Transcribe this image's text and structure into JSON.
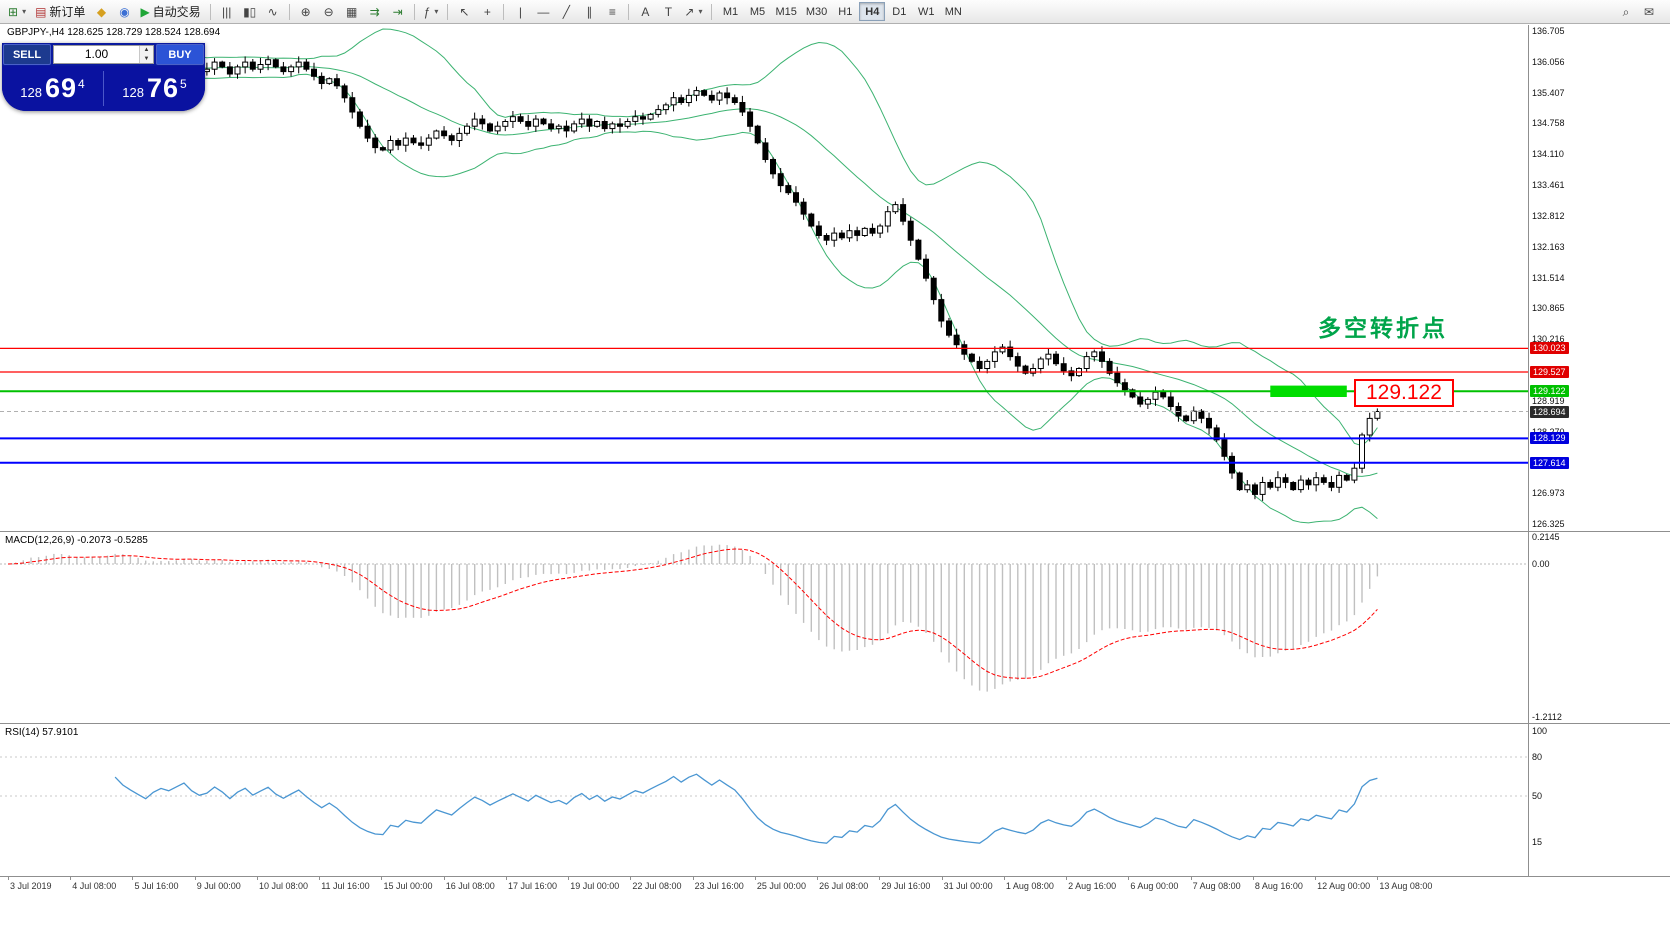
{
  "toolbar": {
    "caret_glyph": "▾",
    "left_items": [
      {
        "name": "new-chart-button",
        "glyph": "⊞",
        "color": "#2e7d32",
        "caret": true
      },
      {
        "name": "new-order-button",
        "glyph": "▤",
        "color": "#b03030",
        "label": "新订单"
      },
      {
        "name": "alerts-icon-button",
        "glyph": "◆",
        "color": "#d6a020"
      },
      {
        "name": "community-icon-button",
        "glyph": "◉",
        "color": "#3b6fd4"
      },
      {
        "name": "auto-trading-button",
        "glyph": "▶",
        "color": "#1fa637",
        "label": "自动交易"
      },
      {
        "sep": true
      },
      {
        "name": "bar-chart-button",
        "glyph": "|||",
        "color": "#444"
      },
      {
        "name": "candlestick-chart-button",
        "glyph": "▮▯",
        "color": "#444"
      },
      {
        "name": "line-chart-button",
        "glyph": "∿",
        "color": "#444"
      },
      {
        "sep": true
      },
      {
        "name": "zoom-in-button",
        "glyph": "⊕",
        "color": "#444"
      },
      {
        "name": "zoom-out-button",
        "glyph": "⊖",
        "color": "#444"
      },
      {
        "name": "tile-windows-button",
        "glyph": "▦",
        "color": "#444"
      },
      {
        "name": "auto-scroll-button",
        "glyph": "⇉",
        "color": "#2e7d32"
      },
      {
        "name": "chart-shift-button",
        "glyph": "⇥",
        "color": "#2e7d32"
      },
      {
        "sep": true
      },
      {
        "name": "indicators-button",
        "glyph": "ƒ",
        "color": "#444",
        "caret": true
      },
      {
        "sep": true
      },
      {
        "name": "cursor-button",
        "glyph": "↖",
        "color": "#444"
      },
      {
        "name": "crosshair-button",
        "glyph": "+",
        "color": "#444"
      },
      {
        "sep": true
      },
      {
        "name": "vertical-line-button",
        "glyph": "|",
        "color": "#444"
      },
      {
        "name": "horizontal-line-button",
        "glyph": "—",
        "color": "#444"
      },
      {
        "name": "trendline-button",
        "glyph": "╱",
        "color": "#444"
      },
      {
        "name": "channel-button",
        "glyph": "∥",
        "color": "#444"
      },
      {
        "name": "fibonacci-button",
        "glyph": "≡",
        "color": "#444"
      },
      {
        "sep": true
      },
      {
        "name": "text-button",
        "glyph": "A",
        "color": "#444"
      },
      {
        "name": "text-label-button",
        "glyph": "T",
        "color": "#444"
      },
      {
        "name": "arrows-tool-button",
        "glyph": "↗",
        "color": "#444",
        "caret": true
      },
      {
        "sep": true
      }
    ],
    "timeframes": [
      "M1",
      "M5",
      "M15",
      "M30",
      "H1",
      "H4",
      "D1",
      "W1",
      "MN"
    ],
    "active_timeframe": "H4",
    "right_items": [
      {
        "name": "symbol-search-button",
        "glyph": "⌕",
        "color": "#444"
      },
      {
        "name": "chat-button",
        "glyph": "✉",
        "color": "#444"
      }
    ]
  },
  "chart_header": {
    "title": "GBPJPY-,H4  128.625 128.729 128.524 128.694"
  },
  "order_panel": {
    "sell_label": "SELL",
    "buy_label": "BUY",
    "volume": "1.00",
    "up_glyph": "▲",
    "down_glyph": "▼",
    "sell_price": {
      "main": "128",
      "pips": "69",
      "pt": "4"
    },
    "buy_price": {
      "main": "128",
      "pips": "76",
      "pt": "5"
    }
  },
  "annotations": {
    "turning_point": "多空转折点",
    "level_label": "129.122"
  },
  "price_scale": {
    "ticks": [
      "136.705",
      "136.056",
      "135.407",
      "134.758",
      "134.110",
      "133.461",
      "132.812",
      "132.163",
      "131.514",
      "130.865",
      "130.216",
      "128.919",
      "128.270",
      "126.973",
      "126.325"
    ],
    "badges": [
      {
        "label": "130.023",
        "price": 130.023,
        "color": "#e00000"
      },
      {
        "label": "129.527",
        "price": 129.527,
        "color": "#e00000"
      },
      {
        "label": "129.122",
        "price": 129.122,
        "color": "#00c000"
      },
      {
        "label": "128.694",
        "price": 128.694,
        "color": "#2b2b2b"
      },
      {
        "label": "128.129",
        "price": 128.129,
        "color": "#0000dd"
      },
      {
        "label": "127.614",
        "price": 127.614,
        "color": "#0000dd"
      }
    ]
  },
  "macd_panel": {
    "label": "MACD(12,26,9) -0.2073 -0.5285",
    "scale": [
      {
        "label": "0.2145",
        "value": 0.2145
      },
      {
        "label": "0.00",
        "value": 0
      },
      {
        "label": "-1.2112",
        "value": -1.2112
      }
    ]
  },
  "rsi_panel": {
    "label": "RSI(14) 57.9101",
    "scale": [
      {
        "label": "100",
        "value": 100
      },
      {
        "label": "80",
        "value": 80
      },
      {
        "label": "50",
        "value": 50
      },
      {
        "label": "15",
        "value": 15
      }
    ],
    "levels": [
      80,
      50
    ]
  },
  "chart_data": {
    "type": "candlestick",
    "symbol": "GBPJPY-",
    "timeframe": "H4",
    "current_ohlc": {
      "open": 128.625,
      "high": 128.729,
      "low": 128.524,
      "close": 128.694
    },
    "ylim": [
      126.325,
      136.705
    ],
    "closes": [
      135.7,
      135.85,
      135.95,
      136.05,
      135.9,
      136.0,
      136.1,
      135.95,
      135.85,
      135.75,
      135.9,
      136.0,
      135.95,
      136.05,
      136.15,
      136.0,
      135.9,
      135.8,
      135.7,
      135.85,
      135.95,
      135.9,
      136.0,
      136.1,
      135.95,
      135.85,
      135.9,
      136.05,
      135.95,
      135.8,
      135.95,
      136.05,
      135.9,
      136.0,
      136.1,
      135.95,
      135.85,
      135.95,
      136.05,
      135.9,
      135.75,
      135.6,
      135.7,
      135.55,
      135.3,
      135.0,
      134.7,
      134.45,
      134.25,
      134.2,
      134.4,
      134.3,
      134.45,
      134.35,
      134.3,
      134.45,
      134.6,
      134.5,
      134.4,
      134.55,
      134.7,
      134.85,
      134.75,
      134.6,
      134.7,
      134.8,
      134.9,
      134.8,
      134.7,
      134.85,
      134.75,
      134.65,
      134.7,
      134.6,
      134.75,
      134.85,
      134.7,
      134.8,
      134.65,
      134.75,
      134.7,
      134.8,
      134.9,
      134.85,
      134.95,
      135.05,
      135.15,
      135.3,
      135.2,
      135.35,
      135.45,
      135.35,
      135.25,
      135.4,
      135.3,
      135.2,
      135.0,
      134.7,
      134.35,
      134.0,
      133.7,
      133.45,
      133.3,
      133.1,
      132.85,
      132.6,
      132.4,
      132.3,
      132.45,
      132.35,
      132.5,
      132.4,
      132.55,
      132.45,
      132.6,
      132.9,
      133.05,
      132.7,
      132.3,
      131.9,
      131.5,
      131.05,
      130.6,
      130.3,
      130.1,
      129.9,
      129.75,
      129.6,
      129.75,
      129.95,
      130.05,
      129.85,
      129.65,
      129.5,
      129.6,
      129.8,
      129.9,
      129.7,
      129.55,
      129.45,
      129.6,
      129.85,
      129.95,
      129.75,
      129.5,
      129.3,
      129.15,
      129.0,
      128.85,
      128.95,
      129.1,
      129.0,
      128.8,
      128.6,
      128.5,
      128.7,
      128.55,
      128.35,
      128.1,
      127.75,
      127.4,
      127.05,
      127.15,
      126.95,
      127.2,
      127.1,
      127.3,
      127.2,
      127.05,
      127.25,
      127.15,
      127.3,
      127.2,
      127.1,
      127.35,
      127.25,
      127.5,
      128.2,
      128.55,
      128.694
    ],
    "indicators": {
      "bollinger": {
        "period": 20,
        "deviation": 2
      },
      "macd": {
        "fast": 12,
        "slow": 26,
        "signal": 9,
        "current_main": -0.2073,
        "current_signal": -0.5285
      },
      "rsi": {
        "period": 14,
        "current": 57.9101
      }
    },
    "levels": [
      {
        "price": 130.023,
        "color": "#ff0000",
        "width": 1.2,
        "name": "resistance-line-130-023"
      },
      {
        "price": 129.527,
        "color": "#ff0000",
        "width": 1.2,
        "name": "resistance-line-129-527"
      },
      {
        "price": 129.122,
        "color": "#00c000",
        "width": 2,
        "name": "key-level-line-129-122"
      },
      {
        "price": 128.694,
        "color": "#b0b0b0",
        "width": 1,
        "dash": true,
        "name": "current-price-line"
      },
      {
        "price": 128.129,
        "color": "#0000ff",
        "width": 2,
        "name": "support-line-128-129"
      },
      {
        "price": 127.614,
        "color": "#0000ff",
        "width": 2,
        "name": "support-line-127-614"
      }
    ],
    "highlight": {
      "from_index": 165,
      "to_index": 175,
      "price_top": 129.24,
      "price_bottom": 129.0,
      "color": "#00dd00"
    },
    "colors": {
      "bollinger": "#3cb371",
      "candle_up": "#ffffff",
      "candle_down": "#000000",
      "candle_outline": "#000000",
      "macd_histogram": "#c0c0c0",
      "macd_signal": "#ff0000",
      "rsi": "#4a96d2"
    },
    "time_labels": [
      "3 Jul 2019",
      "4 Jul 08:00",
      "5 Jul 16:00",
      "9 Jul 00:00",
      "10 Jul 08:00",
      "11 Jul 16:00",
      "15 Jul 00:00",
      "16 Jul 08:00",
      "17 Jul 16:00",
      "19 Jul 00:00",
      "22 Jul 08:00",
      "23 Jul 16:00",
      "25 Jul 00:00",
      "26 Jul 08:00",
      "29 Jul 16:00",
      "31 Jul 00:00",
      "1 Aug 08:00",
      "2 Aug 16:00",
      "6 Aug 00:00",
      "7 Aug 08:00",
      "8 Aug 16:00",
      "12 Aug 00:00",
      "13 Aug 08:00"
    ]
  }
}
